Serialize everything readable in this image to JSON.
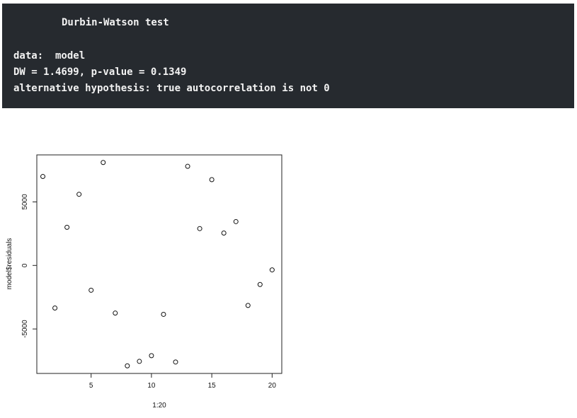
{
  "console": {
    "title": "Durbin-Watson test",
    "data_line": "data:  model",
    "stat_line": "DW = 1.4699, p-value = 0.1349",
    "alt_line": "alternative hypothesis: true autocorrelation is not 0"
  },
  "chart_data": {
    "type": "scatter",
    "xlabel": "1:20",
    "ylabel": "model$residuals",
    "xlim": [
      0.5,
      20.8
    ],
    "ylim": [
      -8500,
      8700
    ],
    "xticks": [
      5,
      10,
      15,
      20
    ],
    "yticks": [
      -5000,
      0,
      5000
    ],
    "grid": false,
    "x": [
      1,
      2,
      3,
      4,
      5,
      6,
      7,
      8,
      9,
      10,
      11,
      12,
      13,
      14,
      15,
      16,
      17,
      18,
      19,
      20
    ],
    "y": [
      7000,
      -3350,
      3000,
      5600,
      -1950,
      8100,
      -3750,
      -7900,
      -7550,
      -7100,
      -3850,
      -7600,
      7800,
      2900,
      6750,
      2550,
      3450,
      -3150,
      -1500,
      -350
    ]
  }
}
